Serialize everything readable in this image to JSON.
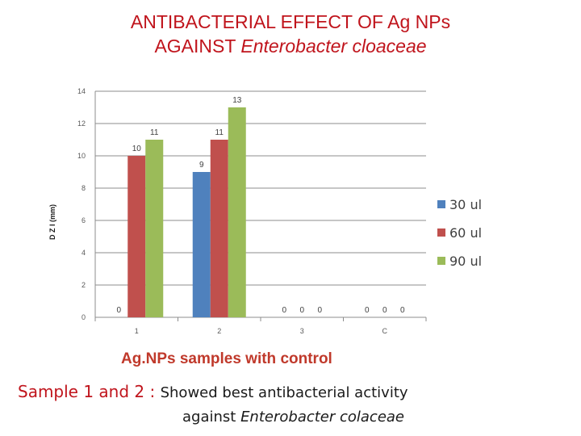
{
  "title": {
    "line1": "ANTIBACTERIAL EFFECT OF Ag NPs",
    "line2_prefix": "AGAINST ",
    "line2_italic": "Enterobacter cloaceae"
  },
  "chart_data": {
    "type": "bar",
    "categories": [
      "1",
      "2",
      "3",
      "C"
    ],
    "series": [
      {
        "name": "30 ul",
        "color": "#4f81bd",
        "values": [
          0,
          9,
          0,
          0
        ]
      },
      {
        "name": "60 ul",
        "color": "#c0504d",
        "values": [
          10,
          11,
          0,
          0
        ]
      },
      {
        "name": "90 ul",
        "color": "#9bbb59",
        "values": [
          11,
          13,
          0,
          0
        ]
      }
    ],
    "xlabel": "Ag.NPs  samples with control",
    "ylabel": "D Z I (mm)",
    "ylim": [
      0,
      14
    ],
    "yticks": [
      "0",
      "2",
      "4",
      "6",
      "8",
      "10",
      "12",
      "14"
    ],
    "grid": true,
    "legend": "right"
  },
  "caption": {
    "lead": "Sample 1 and 2 : ",
    "text": "Showed best antibacterial activity",
    "line2_prefix": "against ",
    "line2_italic": "Enterobacter colaceae"
  }
}
